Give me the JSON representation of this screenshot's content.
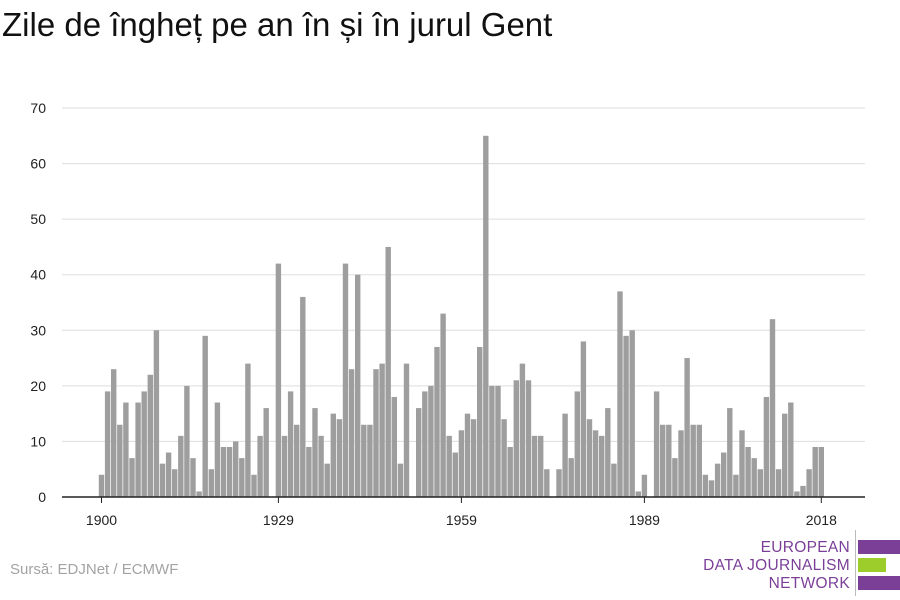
{
  "title": "Zile de îngheț pe an în și în jurul Gent",
  "source": "Sursă: EDJNet / ECMWF",
  "logo": {
    "lines": [
      "EUROPEAN",
      "DATA JOURNALISM",
      "NETWORK"
    ],
    "colors": {
      "purple": "#7b3f98",
      "green": "#9ccd2a"
    }
  },
  "colors": {
    "bar": "#9e9e9e",
    "grid": "#dddddd",
    "axis": "#222222",
    "text": "#222222"
  },
  "chart_data": {
    "type": "bar",
    "title": "Zile de îngheț pe an în și în jurul Gent",
    "xlabel": "",
    "ylabel": "",
    "ylim": [
      0,
      70
    ],
    "yticks": [
      "0",
      "10",
      "20",
      "30",
      "40",
      "50",
      "60",
      "70"
    ],
    "xticks": [
      "1900",
      "1929",
      "1959",
      "1989",
      "2018"
    ],
    "grid": true,
    "categories": [
      1900,
      1901,
      1902,
      1903,
      1904,
      1905,
      1906,
      1907,
      1908,
      1909,
      1910,
      1911,
      1912,
      1913,
      1914,
      1915,
      1916,
      1917,
      1918,
      1919,
      1920,
      1921,
      1922,
      1923,
      1924,
      1925,
      1926,
      1927,
      1928,
      1929,
      1930,
      1931,
      1932,
      1933,
      1934,
      1935,
      1936,
      1937,
      1938,
      1939,
      1940,
      1941,
      1942,
      1943,
      1944,
      1945,
      1946,
      1947,
      1948,
      1949,
      1950,
      1951,
      1952,
      1953,
      1954,
      1955,
      1956,
      1957,
      1958,
      1959,
      1960,
      1961,
      1962,
      1963,
      1964,
      1965,
      1966,
      1967,
      1968,
      1969,
      1970,
      1971,
      1972,
      1973,
      1974,
      1975,
      1976,
      1977,
      1978,
      1979,
      1980,
      1981,
      1982,
      1983,
      1984,
      1985,
      1986,
      1987,
      1988,
      1989,
      1990,
      1991,
      1992,
      1993,
      1994,
      1995,
      1996,
      1997,
      1998,
      1999,
      2000,
      2001,
      2002,
      2003,
      2004,
      2005,
      2006,
      2007,
      2008,
      2009,
      2010,
      2011,
      2012,
      2013,
      2014,
      2015,
      2016,
      2017,
      2018
    ],
    "values": [
      4,
      19,
      23,
      13,
      17,
      7,
      17,
      19,
      22,
      30,
      6,
      8,
      5,
      11,
      20,
      7,
      1,
      29,
      5,
      17,
      9,
      9,
      10,
      7,
      24,
      4,
      11,
      16,
      0,
      42,
      11,
      19,
      13,
      36,
      9,
      16,
      11,
      6,
      15,
      14,
      42,
      23,
      40,
      13,
      13,
      23,
      24,
      45,
      18,
      6,
      24,
      0,
      16,
      19,
      20,
      27,
      33,
      11,
      8,
      12,
      15,
      14,
      27,
      65,
      20,
      20,
      14,
      9,
      21,
      24,
      21,
      11,
      11,
      5,
      0,
      5,
      15,
      7,
      19,
      28,
      14,
      12,
      11,
      16,
      6,
      37,
      29,
      30,
      1,
      4,
      0,
      19,
      13,
      13,
      7,
      12,
      25,
      13,
      13,
      4,
      3,
      6,
      8,
      16,
      4,
      12,
      9,
      7,
      5,
      18,
      32,
      5,
      15,
      17,
      1,
      2,
      5,
      9,
      9
    ]
  }
}
